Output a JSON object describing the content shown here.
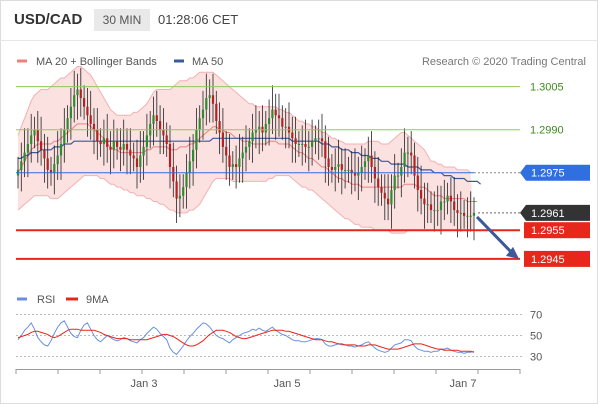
{
  "header": {
    "symbol": "USD/CAD",
    "interval": "30 MIN",
    "time": "01:28:06 CET"
  },
  "legend": {
    "bollinger": "MA 20 + Bollinger Bands",
    "ma50": "MA 50",
    "credit": "Research © 2020 Trading Central",
    "rsi": "RSI",
    "rsi_ma": "9MA"
  },
  "colors": {
    "bollinger": "#f08080",
    "ma50": "#3a5a9a",
    "resistance": "#8fc85a",
    "support": "#e8261c",
    "pivot": "#2f6fe0",
    "arrow": "#3a5a9a",
    "rsi": "#6b8fe0",
    "candle_up": "#2e8b2e",
    "candle_down": "#b22222"
  },
  "chart_data": [
    {
      "type": "candlestick",
      "title": "USD/CAD",
      "x_ticks": [
        "Jan 3",
        "Jan 5",
        "Jan 7"
      ],
      "ylim": [
        1.2938,
        1.3016
      ],
      "grid": false,
      "levels": [
        {
          "label": "1.3005",
          "value": 1.3005,
          "kind": "resistance"
        },
        {
          "label": "1.2990",
          "value": 1.299,
          "kind": "resistance"
        },
        {
          "label": "1.2975",
          "value": 1.2975,
          "kind": "pivot"
        },
        {
          "label": "1.2961",
          "value": 1.2961,
          "kind": "last"
        },
        {
          "label": "1.2955",
          "value": 1.2955,
          "kind": "support"
        },
        {
          "label": "1.2945",
          "value": 1.2945,
          "kind": "support"
        }
      ],
      "close": [
        1.2976,
        1.2979,
        1.2982,
        1.2985,
        1.2988,
        1.299,
        1.2986,
        1.2983,
        1.298,
        1.2976,
        1.2975,
        1.2978,
        1.2981,
        1.2985,
        1.299,
        1.2994,
        1.2998,
        1.3002,
        1.3004,
        1.3001,
        1.2998,
        1.2995,
        1.2992,
        1.299,
        1.2986,
        1.2985,
        1.2987,
        1.2984,
        1.2983,
        1.2986,
        1.2984,
        1.2983,
        1.2985,
        1.2983,
        1.2981,
        1.298,
        1.2977,
        1.2981,
        1.2984,
        1.2988,
        1.2992,
        1.2995,
        1.2993,
        1.299,
        1.2988,
        1.2985,
        1.2977,
        1.2972,
        1.2966,
        1.2967,
        1.297,
        1.2975,
        1.2979,
        1.2983,
        1.299,
        1.2994,
        1.2997,
        1.3001,
        1.3002,
        1.2999,
        1.2993,
        1.2989,
        1.2984,
        1.2981,
        1.2977,
        1.2978,
        1.2977,
        1.298,
        1.2982,
        1.2984,
        1.2986,
        1.2989,
        1.299,
        1.2991,
        1.2989,
        1.2992,
        1.2994,
        1.2997,
        1.2995,
        1.2994,
        1.2991,
        1.2991,
        1.2989,
        1.2987,
        1.2985,
        1.2985,
        1.2985,
        1.2984,
        1.2984,
        1.2986,
        1.2987,
        1.2987,
        1.2986,
        1.298,
        1.2977,
        1.2976,
        1.2977,
        1.2978,
        1.2976,
        1.2976,
        1.2976,
        1.2975,
        1.2974,
        1.2975,
        1.2977,
        1.2979,
        1.2981,
        1.2977,
        1.2973,
        1.297,
        1.2968,
        1.2966,
        1.2964,
        1.2969,
        1.2974,
        1.2974,
        1.2977,
        1.2982,
        1.2982,
        1.2981,
        1.2974,
        1.2969,
        1.2966,
        1.2964,
        1.2964,
        1.2962,
        1.2962,
        1.2962,
        1.2965,
        1.2965,
        1.2967,
        1.2965,
        1.2962,
        1.2961,
        1.2961,
        1.296,
        1.296,
        1.296,
        1.2961
      ],
      "bollinger_upper": [
        1.2988,
        1.2991,
        1.2994,
        1.2997,
        1.3,
        1.3002,
        1.3003,
        1.3004,
        1.3004,
        1.3004,
        1.3005,
        1.3006,
        1.3007,
        1.3008,
        1.3008,
        1.3009,
        1.301,
        1.3011,
        1.3012,
        1.3012,
        1.3011,
        1.301,
        1.3009,
        1.3007,
        1.3005,
        1.3003,
        1.3001,
        1.2999,
        1.2997,
        1.2996,
        1.2995,
        1.2995,
        1.2995,
        1.2995,
        1.2995,
        1.2996,
        1.2996,
        1.2997,
        1.2998,
        1.2999,
        1.3001,
        1.3003,
        1.3004,
        1.3004,
        1.3004,
        1.3004,
        1.3004,
        1.3005,
        1.3006,
        1.3007,
        1.3007,
        1.3007,
        1.3008,
        1.3008,
        1.3009,
        1.301,
        1.301,
        1.301,
        1.301,
        1.301,
        1.3009,
        1.3008,
        1.3007,
        1.3006,
        1.3005,
        1.3004,
        1.3003,
        1.3002,
        1.3001,
        1.3,
        1.2999,
        1.2999,
        1.2998,
        1.2998,
        1.2998,
        1.2998,
        1.2998,
        1.2998,
        1.2998,
        1.2997,
        1.2997,
        1.2996,
        1.2996,
        1.2995,
        1.2994,
        1.2993,
        1.2993,
        1.2992,
        1.2992,
        1.2991,
        1.2991,
        1.299,
        1.2989,
        1.2989,
        1.2988,
        1.2987,
        1.2987,
        1.2986,
        1.2986,
        1.2985,
        1.2985,
        1.2985,
        1.2985,
        1.2985,
        1.2985,
        1.2985,
        1.2986,
        1.2986,
        1.2986,
        1.2986,
        1.2985,
        1.2985,
        1.2985,
        1.2986,
        1.2987,
        1.2988,
        1.2989,
        1.2989,
        1.2988,
        1.2987,
        1.2986,
        1.2985,
        1.2984,
        1.2983,
        1.2981,
        1.2979,
        1.2979,
        1.2978,
        1.2978,
        1.2977,
        1.2977,
        1.2977,
        1.2977,
        1.2976,
        1.2976,
        1.2976,
        1.2976,
        1.2975
      ],
      "bollinger_lower": [
        1.2962,
        1.2963,
        1.2964,
        1.2965,
        1.2966,
        1.2967,
        1.2967,
        1.2967,
        1.2967,
        1.2967,
        1.2966,
        1.2966,
        1.2966,
        1.2967,
        1.2968,
        1.2969,
        1.297,
        1.2971,
        1.2972,
        1.2973,
        1.2974,
        1.2974,
        1.2974,
        1.2974,
        1.2974,
        1.2973,
        1.2973,
        1.2972,
        1.2971,
        1.2971,
        1.297,
        1.297,
        1.2969,
        1.2969,
        1.2968,
        1.2968,
        1.2967,
        1.2967,
        1.2967,
        1.2966,
        1.2966,
        1.2965,
        1.2965,
        1.2964,
        1.2964,
        1.2963,
        1.2962,
        1.2962,
        1.2961,
        1.2961,
        1.2961,
        1.2961,
        1.2962,
        1.2962,
        1.2963,
        1.2964,
        1.2966,
        1.2968,
        1.297,
        1.2972,
        1.2973,
        1.2973,
        1.2973,
        1.2973,
        1.2973,
        1.2972,
        1.2972,
        1.2972,
        1.2972,
        1.2972,
        1.2972,
        1.2972,
        1.2972,
        1.2972,
        1.2972,
        1.2972,
        1.2973,
        1.2973,
        1.2974,
        1.2974,
        1.2974,
        1.2974,
        1.2974,
        1.2973,
        1.2972,
        1.2971,
        1.297,
        1.297,
        1.2969,
        1.2969,
        1.2968,
        1.2967,
        1.2966,
        1.2965,
        1.2964,
        1.2963,
        1.2962,
        1.2961,
        1.296,
        1.2959,
        1.2959,
        1.2958,
        1.2957,
        1.2957,
        1.2956,
        1.2956,
        1.2956,
        1.2956,
        1.2955,
        1.2955,
        1.2955,
        1.2955,
        1.2955,
        1.2954,
        1.2954,
        1.2954,
        1.2954,
        1.2954,
        1.2955,
        1.2955,
        1.2955,
        1.2955,
        1.2955,
        1.2955,
        1.2955,
        1.2955,
        1.2955,
        1.2955,
        1.2955,
        1.2955,
        1.2955,
        1.2955,
        1.2955,
        1.2955,
        1.2955,
        1.2955,
        1.2955,
        1.2955,
        1.2955,
        1.2955
      ],
      "ma20": [
        1.2975,
        1.2977,
        1.2979,
        1.2981,
        1.2983,
        1.2984,
        1.2985,
        1.2985,
        1.2985,
        1.2985,
        1.2985,
        1.2986,
        1.2986,
        1.2987,
        1.2988,
        1.2989,
        1.299,
        1.2991,
        1.2992,
        1.2992,
        1.2992,
        1.2992,
        1.2991,
        1.299,
        1.2989,
        1.2988,
        1.2987,
        1.2985,
        1.2984,
        1.2983,
        1.2983,
        1.2982,
        1.2982,
        1.2982,
        1.2982,
        1.2982,
        1.2982,
        1.2982,
        1.2982,
        1.2983,
        1.2983,
        1.2984,
        1.2984,
        1.2984,
        1.2984,
        1.2984,
        1.2983,
        1.2983,
        1.2983,
        1.2984,
        1.2984,
        1.2984,
        1.2985,
        1.2985,
        1.2986,
        1.2987,
        1.2988,
        1.2989,
        1.299,
        1.2991,
        1.2991,
        1.299,
        1.299,
        1.2989,
        1.2989,
        1.2988,
        1.2987,
        1.2987,
        1.2986,
        1.2986,
        1.2986,
        1.2985,
        1.2985,
        1.2985,
        1.2985,
        1.2985,
        1.2986,
        1.2986,
        1.2986,
        1.2985,
        1.2985,
        1.2985,
        1.2985,
        1.2984,
        1.2983,
        1.2982,
        1.2982,
        1.2981,
        1.298,
        1.298,
        1.2979,
        1.2978,
        1.2977,
        1.2977,
        1.2976,
        1.2975,
        1.2974,
        1.2973,
        1.2973,
        1.2972,
        1.2972,
        1.2971,
        1.2971,
        1.2971,
        1.297,
        1.297,
        1.297,
        1.297,
        1.297,
        1.297,
        1.297,
        1.297,
        1.297,
        1.297,
        1.297,
        1.297,
        1.297,
        1.2971,
        1.2971,
        1.2971,
        1.2971,
        1.297,
        1.297,
        1.297,
        1.2969,
        1.2968,
        1.2967,
        1.2967,
        1.2967,
        1.2966,
        1.2966,
        1.2966,
        1.2966,
        1.2966,
        1.2966,
        1.2966,
        1.2965,
        1.2965,
        1.2965,
        1.2965
      ],
      "ma50": [
        1.298,
        1.298,
        1.2981,
        1.2981,
        1.2982,
        1.2982,
        1.2982,
        1.2983,
        1.2983,
        1.2983,
        1.2983,
        1.2984,
        1.2984,
        1.2984,
        1.2985,
        1.2985,
        1.2985,
        1.2986,
        1.2986,
        1.2986,
        1.2986,
        1.2986,
        1.2986,
        1.2986,
        1.2986,
        1.2986,
        1.2986,
        1.2986,
        1.2986,
        1.2986,
        1.2986,
        1.2986,
        1.2986,
        1.2986,
        1.2986,
        1.2986,
        1.2986,
        1.2986,
        1.2986,
        1.2986,
        1.2986,
        1.2986,
        1.2986,
        1.2986,
        1.2986,
        1.2986,
        1.2986,
        1.2986,
        1.2986,
        1.2986,
        1.2986,
        1.2986,
        1.2986,
        1.2986,
        1.2986,
        1.2986,
        1.2986,
        1.2986,
        1.2986,
        1.2987,
        1.2987,
        1.2987,
        1.2987,
        1.2987,
        1.2987,
        1.2987,
        1.2987,
        1.2987,
        1.2987,
        1.2987,
        1.2987,
        1.2987,
        1.2987,
        1.2987,
        1.2987,
        1.2987,
        1.2987,
        1.2987,
        1.2987,
        1.2987,
        1.2987,
        1.2987,
        1.2987,
        1.2986,
        1.2986,
        1.2986,
        1.2986,
        1.2986,
        1.2986,
        1.2986,
        1.2986,
        1.2986,
        1.2985,
        1.2985,
        1.2985,
        1.2984,
        1.2984,
        1.2984,
        1.2983,
        1.2983,
        1.2983,
        1.2982,
        1.2982,
        1.2982,
        1.2981,
        1.2981,
        1.2981,
        1.298,
        1.298,
        1.298,
        1.2979,
        1.2979,
        1.2979,
        1.2978,
        1.2978,
        1.2978,
        1.2978,
        1.2978,
        1.2977,
        1.2977,
        1.2977,
        1.2977,
        1.2976,
        1.2976,
        1.2976,
        1.2976,
        1.2975,
        1.2975,
        1.2975,
        1.2974,
        1.2974,
        1.2974,
        1.2973,
        1.2973,
        1.2973,
        1.2973,
        1.2972,
        1.2972,
        1.2972,
        1.2972,
        1.2971
      ]
    },
    {
      "type": "line",
      "title": "RSI",
      "y_ticks": [
        30,
        50,
        70
      ],
      "ylim": [
        20,
        80
      ],
      "series": [
        {
          "name": "RSI",
          "values": [
            46,
            50,
            55,
            58,
            62,
            56,
            48,
            44,
            41,
            40,
            45,
            52,
            58,
            62,
            64,
            58,
            52,
            49,
            48,
            55,
            60,
            62,
            56,
            50,
            46,
            44,
            47,
            50,
            48,
            46,
            45,
            46,
            48,
            47,
            45,
            44,
            43,
            46,
            48,
            52,
            55,
            58,
            56,
            52,
            49,
            46,
            38,
            34,
            32,
            36,
            40,
            45,
            49,
            52,
            56,
            59,
            62,
            61,
            58,
            54,
            50,
            48,
            47,
            45,
            43,
            46,
            48,
            50,
            52,
            53,
            54,
            56,
            55,
            57,
            55,
            54,
            56,
            58,
            55,
            53,
            51,
            50,
            48,
            46,
            45,
            45,
            44,
            44,
            45,
            46,
            47,
            47,
            46,
            42,
            40,
            40,
            41,
            42,
            41,
            41,
            40,
            40,
            39,
            40,
            41,
            43,
            44,
            41,
            38,
            36,
            35,
            34,
            35,
            38,
            41,
            42,
            43,
            46,
            46,
            45,
            40,
            37,
            36,
            35,
            35,
            34,
            35,
            35,
            37,
            37,
            38,
            36,
            35,
            34,
            34,
            33,
            34,
            34,
            35
          ]
        },
        {
          "name": "9MA",
          "values": [
            48,
            49,
            50,
            51,
            53,
            54,
            54,
            53,
            52,
            51,
            49,
            48,
            49,
            51,
            53,
            55,
            56,
            56,
            56,
            55,
            55,
            55,
            55,
            55,
            54,
            53,
            51,
            50,
            49,
            48,
            47,
            47,
            47,
            47,
            46,
            46,
            46,
            46,
            46,
            46,
            47,
            48,
            49,
            50,
            51,
            51,
            50,
            49,
            47,
            45,
            43,
            41,
            40,
            40,
            41,
            43,
            45,
            48,
            51,
            53,
            55,
            55,
            55,
            54,
            53,
            51,
            49,
            48,
            47,
            47,
            48,
            49,
            50,
            51,
            52,
            53,
            54,
            55,
            55,
            55,
            55,
            54,
            54,
            53,
            52,
            51,
            50,
            49,
            48,
            47,
            46,
            46,
            46,
            45,
            44,
            44,
            43,
            42,
            42,
            41,
            41,
            41,
            41,
            40,
            40,
            40,
            41,
            41,
            41,
            40,
            39,
            38,
            37,
            37,
            37,
            37,
            38,
            39,
            40,
            41,
            42,
            42,
            42,
            41,
            40,
            39,
            38,
            37,
            37,
            36,
            36,
            36,
            36,
            36,
            35,
            35,
            35,
            35,
            34
          ]
        }
      ]
    }
  ]
}
